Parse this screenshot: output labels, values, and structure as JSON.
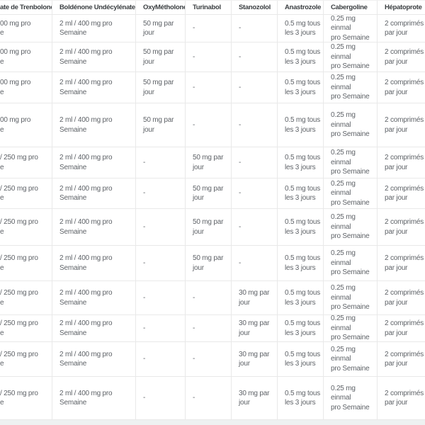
{
  "table": {
    "columns": [
      {
        "label": "ate de Trenbolone"
      },
      {
        "label": "Boldénone Undécylénate"
      },
      {
        "label": "OxyMétholone"
      },
      {
        "label": "Turinabol"
      },
      {
        "label": "Stanozolol"
      },
      {
        "label": "Anastrozole"
      },
      {
        "label": "Cabergoline"
      },
      {
        "label": "Hépatoprote"
      }
    ],
    "rows": [
      {
        "cells": [
          "00 mg pro\ne",
          "2 ml / 400 mg pro\nSemaine",
          "50 mg par\njour",
          "-",
          "-",
          "0.5 mg tous\nles 3 jours",
          "0.25 mg einmal\npro Semaine",
          "2 comprimés\npar jour"
        ]
      },
      {
        "cells": [
          "00 mg pro\ne",
          "2 ml / 400 mg pro\nSemaine",
          "50 mg par\njour",
          "-",
          "-",
          "0.5 mg tous\nles 3 jours",
          "0.25 mg einmal\npro Semaine",
          "2 comprimés\npar jour"
        ]
      },
      {
        "cells": [
          "00 mg pro\ne",
          "2 ml / 400 mg pro\nSemaine",
          "50 mg par\njour",
          "-",
          "-",
          "0.5 mg tous\nles 3 jours",
          "0.25 mg einmal\npro Semaine",
          "2 comprimés\npar jour"
        ]
      },
      {
        "cells": [
          "00 mg pro\ne",
          "2 ml / 400 mg pro\nSemaine",
          "50 mg par\njour",
          "-",
          "-",
          "0.5 mg tous\nles 3 jours",
          "0.25 mg einmal\npro Semaine",
          "2 comprimés\npar jour"
        ]
      },
      {
        "cells": [
          "/ 250 mg pro\ne",
          "2 ml / 400 mg pro\nSemaine",
          "-",
          "50 mg par\njour",
          "-",
          "0.5 mg tous\nles 3 jours",
          "0.25 mg einmal\npro Semaine",
          "2 comprimés\npar jour"
        ]
      },
      {
        "cells": [
          "/ 250 mg pro\ne",
          "2 ml / 400 mg pro\nSemaine",
          "-",
          "50 mg par\njour",
          "-",
          "0.5 mg tous\nles 3 jours",
          "0.25 mg einmal\npro Semaine",
          "2 comprimés\npar jour"
        ]
      },
      {
        "cells": [
          "/ 250 mg pro\ne",
          "2 ml / 400 mg pro\nSemaine",
          "-",
          "50 mg par\njour",
          "-",
          "0.5 mg tous\nles 3 jours",
          "0.25 mg einmal\npro Semaine",
          "2 comprimés\npar jour"
        ]
      },
      {
        "cells": [
          "/ 250 mg pro\ne",
          "2 ml / 400 mg pro\nSemaine",
          "-",
          "50 mg par\njour",
          "-",
          "0.5 mg tous\nles 3 jours",
          "0.25 mg einmal\npro Semaine",
          "2 comprimés\npar jour"
        ]
      },
      {
        "cells": [
          "/ 250 mg pro\ne",
          "2 ml / 400 mg pro\nSemaine",
          "-",
          "-",
          "30 mg par\njour",
          "0.5 mg tous\nles 3 jours",
          "0.25 mg einmal\npro Semaine",
          "2 comprimés\npar jour"
        ]
      },
      {
        "cells": [
          "/ 250 mg pro\ne",
          "2 ml / 400 mg pro\nSemaine",
          "-",
          "-",
          "30 mg par\njour",
          "0.5 mg tous\nles 3 jours",
          "0.25 mg einmal\npro Semaine",
          "2 comprimés\npar jour"
        ]
      },
      {
        "cells": [
          "/ 250 mg pro\ne",
          "2 ml / 400 mg pro\nSemaine",
          "-",
          "-",
          "30 mg par\njour",
          "0.5 mg tous\nles 3 jours",
          "0.25 mg einmal\npro Semaine",
          "2 comprimés\npar jour"
        ]
      },
      {
        "cells": [
          "/ 250 mg pro\ne",
          "2 ml / 400 mg pro\nSemaine",
          "-",
          "-",
          "30 mg par\njour",
          "0.5 mg tous\nles 3 jours",
          "0.25 mg einmal\npro Semaine",
          "2 comprimés\npar jour"
        ]
      }
    ]
  },
  "colors": {
    "background": "#ffffff",
    "grid_border": "#e9e9e9",
    "header_text": "#3c4043",
    "cell_text": "#5f6368",
    "bottom_strip": "#eef1f1"
  }
}
